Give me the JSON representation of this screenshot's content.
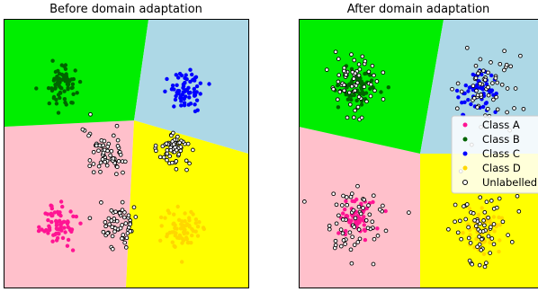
{
  "panels": {
    "left_title": "Before domain adaptation",
    "right_title": "After domain adaptation"
  },
  "legend": {
    "items": [
      "Class A",
      "Class B",
      "Class C",
      "Class D",
      "Unlabelled"
    ]
  },
  "colors": {
    "region_a": "#ffc0cb",
    "region_b": "#00ee00",
    "region_c": "#add8e6",
    "region_d": "#ffff00",
    "class_a": "#ff1493",
    "class_b": "#006400",
    "class_c": "#0000ff",
    "class_d": "#ffd700",
    "unlabelled_fill": "#ffffff",
    "unlabelled_edge": "#000000"
  },
  "chart_data": [
    {
      "type": "scatter",
      "title": "Before domain adaptation",
      "xlim": [
        -6,
        6
      ],
      "ylim": [
        -6,
        6
      ],
      "axes_visible": false,
      "regions": [
        {
          "class": "Class B",
          "label_region": "top-left",
          "color": "#00ee00"
        },
        {
          "class": "Class C",
          "label_region": "top-right",
          "color": "#add8e6"
        },
        {
          "class": "Class A",
          "label_region": "bottom-left",
          "color": "#ffc0cb"
        },
        {
          "class": "Class D",
          "label_region": "bottom-right",
          "color": "#ffff00"
        }
      ],
      "clusters": [
        {
          "name": "Class A",
          "center": [
            -3.3,
            -3.2
          ],
          "spread": 0.45,
          "count": 70
        },
        {
          "name": "Class B",
          "center": [
            -3.2,
            3.1
          ],
          "spread": 0.45,
          "count": 70
        },
        {
          "name": "Class C",
          "center": [
            3.0,
            2.8
          ],
          "spread": 0.45,
          "count": 70
        },
        {
          "name": "Class D",
          "center": [
            2.8,
            -3.4
          ],
          "spread": 0.45,
          "count": 70
        },
        {
          "name": "Unlabelled",
          "center": [
            -1.0,
            0.0
          ],
          "spread": 0.5,
          "count": 60
        },
        {
          "name": "Unlabelled",
          "center": [
            2.2,
            0.2
          ],
          "spread": 0.45,
          "count": 55
        },
        {
          "name": "Unlabelled",
          "center": [
            -0.3,
            -3.3
          ],
          "spread": 0.45,
          "count": 55
        }
      ]
    },
    {
      "type": "scatter",
      "title": "After domain adaptation",
      "xlim": [
        -6,
        6
      ],
      "ylim": [
        -6,
        6
      ],
      "axes_visible": false,
      "legend_position": "right",
      "regions": [
        {
          "class": "Class B",
          "label_region": "top-left",
          "color": "#00ee00"
        },
        {
          "class": "Class C",
          "label_region": "top-right",
          "color": "#add8e6"
        },
        {
          "class": "Class A",
          "label_region": "bottom-left",
          "color": "#ffc0cb"
        },
        {
          "class": "Class D",
          "label_region": "bottom-right",
          "color": "#ffff00"
        }
      ],
      "clusters": [
        {
          "name": "Class A",
          "center": [
            -3.1,
            -2.9
          ],
          "spread": 0.45,
          "count": 60
        },
        {
          "name": "Class B",
          "center": [
            -3.0,
            3.0
          ],
          "spread": 0.45,
          "count": 60
        },
        {
          "name": "Class C",
          "center": [
            3.1,
            2.8
          ],
          "spread": 0.45,
          "count": 60
        },
        {
          "name": "Class D",
          "center": [
            3.2,
            -3.3
          ],
          "spread": 0.45,
          "count": 60
        },
        {
          "name": "Unlabelled",
          "center": [
            -3.2,
            -3.1
          ],
          "spread": 0.8,
          "count": 60
        },
        {
          "name": "Unlabelled",
          "center": [
            -3.1,
            3.0
          ],
          "spread": 0.8,
          "count": 65
        },
        {
          "name": "Unlabelled",
          "center": [
            3.1,
            2.8
          ],
          "spread": 0.8,
          "count": 60
        },
        {
          "name": "Unlabelled",
          "center": [
            3.2,
            -3.3
          ],
          "spread": 0.8,
          "count": 60
        }
      ]
    }
  ]
}
